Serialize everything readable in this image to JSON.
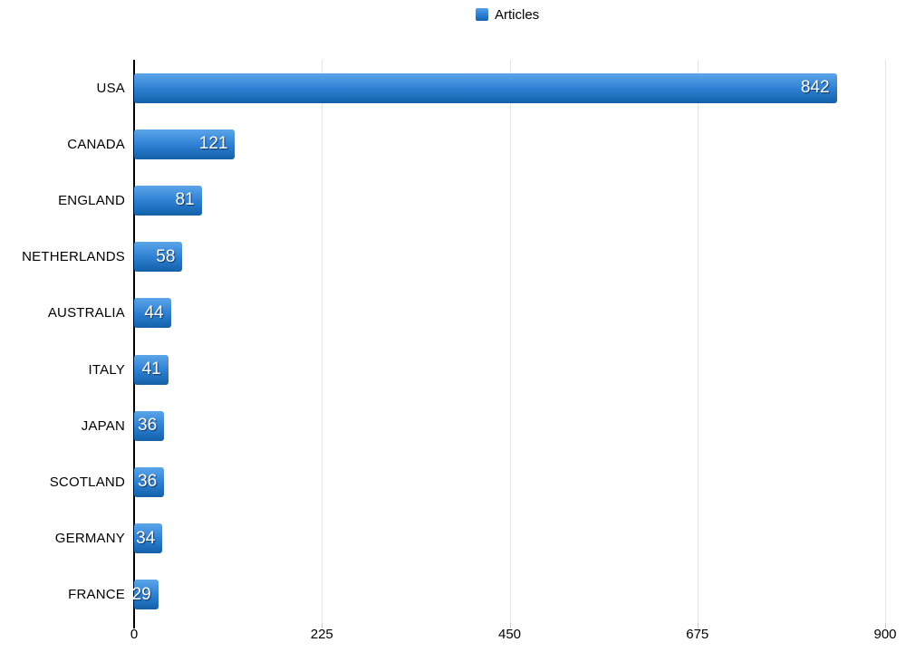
{
  "legend": {
    "label": "Articles"
  },
  "colors": {
    "bar_top": "#5ba5e9",
    "bar_bottom": "#1560a6",
    "gridline": "#e4e4e4",
    "axis": "#000000",
    "category_text": "#000000",
    "value_text": "#ffffff"
  },
  "chart_data": {
    "type": "bar",
    "orientation": "horizontal",
    "title": "",
    "series_name": "Articles",
    "categories": [
      "USA",
      "CANADA",
      "ENGLAND",
      "NETHERLANDS",
      "AUSTRALIA",
      "ITALY",
      "JAPAN",
      "SCOTLAND",
      "GERMANY",
      "FRANCE"
    ],
    "values": [
      842,
      121,
      81,
      58,
      44,
      41,
      36,
      36,
      34,
      29
    ],
    "xlim": [
      0,
      900
    ],
    "xticks": [
      0,
      225,
      450,
      675,
      900
    ],
    "grid": true,
    "legend_position": "top-center",
    "value_labels": "inside-end"
  }
}
